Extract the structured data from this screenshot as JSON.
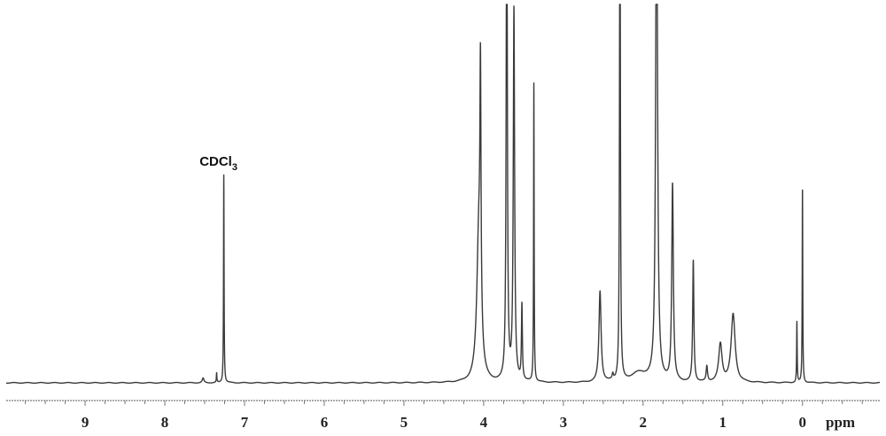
{
  "chart_data": {
    "type": "line",
    "title": "",
    "xlabel": "ppm",
    "ylabel": "",
    "xlim": [
      9.99,
      -0.97
    ],
    "ylim": [
      0,
      100
    ],
    "x_reversed": true,
    "grid": false,
    "x_ticks": [
      "9",
      "8",
      "7",
      "6",
      "5",
      "4",
      "3",
      "2",
      "1",
      "0"
    ],
    "x_tick_values": [
      9,
      8,
      7,
      6,
      5,
      4,
      3,
      2,
      1,
      0
    ],
    "minor_tick_step": 0.25,
    "line_color": "#3a3a3a",
    "annotations": [
      {
        "text": "CDCl",
        "subscript": "3",
        "ppm": 7.26
      }
    ],
    "peaks": [
      {
        "ppm": 7.52,
        "intensity": 1.2,
        "hwhm": 0.012
      },
      {
        "ppm": 7.35,
        "intensity": 2.5,
        "hwhm": 0.004
      },
      {
        "ppm": 7.26,
        "intensity": 55,
        "hwhm": 0.004
      },
      {
        "ppm": 4.06,
        "intensity": 40,
        "hwhm": 0.03
      },
      {
        "ppm": 4.04,
        "intensity": 62,
        "hwhm": 0.008
      },
      {
        "ppm": 3.71,
        "intensity": 150,
        "hwhm": 0.008
      },
      {
        "ppm": 3.62,
        "intensity": 98,
        "hwhm": 0.01
      },
      {
        "ppm": 3.52,
        "intensity": 20,
        "hwhm": 0.007
      },
      {
        "ppm": 3.37,
        "intensity": 79,
        "hwhm": 0.004
      },
      {
        "ppm": 2.54,
        "intensity": 24,
        "hwhm": 0.016
      },
      {
        "ppm": 2.38,
        "intensity": 1.5,
        "hwhm": 0.01
      },
      {
        "ppm": 2.29,
        "intensity": 150,
        "hwhm": 0.006
      },
      {
        "ppm": 2.05,
        "intensity": 2.5,
        "hwhm": 0.12
      },
      {
        "ppm": 1.83,
        "intensity": 150,
        "hwhm": 0.013
      },
      {
        "ppm": 1.63,
        "intensity": 52,
        "hwhm": 0.012
      },
      {
        "ppm": 1.37,
        "intensity": 32,
        "hwhm": 0.009
      },
      {
        "ppm": 1.2,
        "intensity": 4,
        "hwhm": 0.01
      },
      {
        "ppm": 1.03,
        "intensity": 10,
        "hwhm": 0.025
      },
      {
        "ppm": 0.87,
        "intensity": 18,
        "hwhm": 0.03
      },
      {
        "ppm": 0.07,
        "intensity": 16,
        "hwhm": 0.004
      },
      {
        "ppm": 0.0,
        "intensity": 51.5,
        "hwhm": 0.004
      }
    ]
  }
}
